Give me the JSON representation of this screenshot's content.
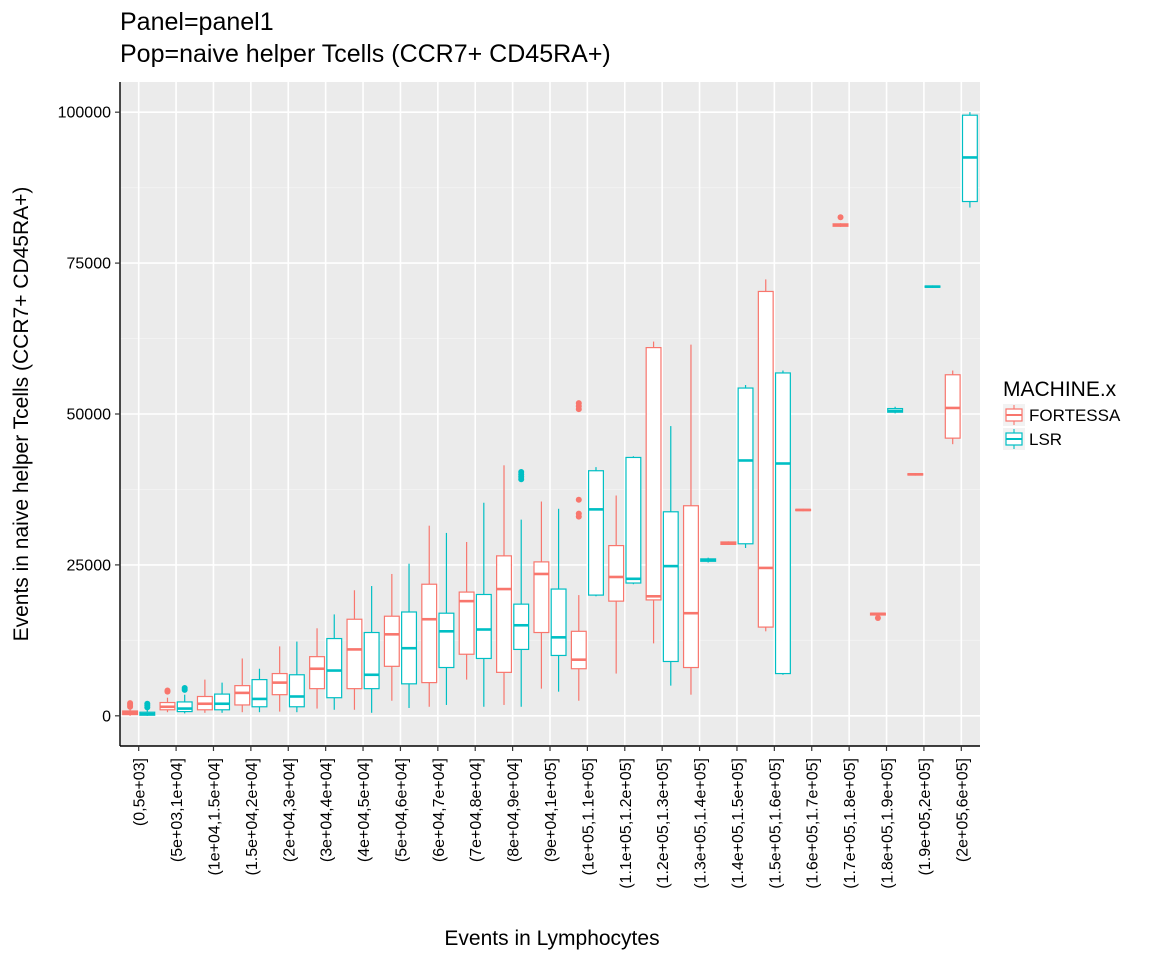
{
  "chart_data": {
    "type": "boxplot",
    "title": "Panel=panel1",
    "subtitle": "Pop=naive helper Tcells (CCR7+ CD45RA+)",
    "xlabel": "Events in Lymphocytes",
    "ylabel": "Events in naive helper Tcells (CCR7+ CD45RA+)",
    "ylim": [
      -5000,
      105000
    ],
    "yticks": [
      0,
      25000,
      50000,
      75000,
      100000
    ],
    "ytick_labels": [
      "0",
      "25000",
      "50000",
      "75000",
      "100000"
    ],
    "grid": true,
    "legend": {
      "title": "MACHINE.x",
      "position": "right",
      "entries": [
        {
          "label": "FORTESSA",
          "color": "#F8766D"
        },
        {
          "label": "LSR",
          "color": "#00BFC4"
        }
      ]
    },
    "categories": [
      "(0,5e+03]",
      "(5e+03,1e+04]",
      "(1e+04,1.5e+04]",
      "(1.5e+04,2e+04]",
      "(2e+04,3e+04]",
      "(3e+04,4e+04]",
      "(4e+04,5e+04]",
      "(5e+04,6e+04]",
      "(6e+04,7e+04]",
      "(7e+04,8e+04]",
      "(8e+04,9e+04]",
      "(9e+04,1e+05]",
      "(1e+05,1.1e+05]",
      "(1.1e+05,1.2e+05]",
      "(1.2e+05,1.3e+05]",
      "(1.3e+05,1.4e+05]",
      "(1.4e+05,1.5e+05]",
      "(1.5e+05,1.6e+05]",
      "(1.6e+05,1.7e+05]",
      "(1.7e+05,1.8e+05]",
      "(1.8e+05,1.9e+05]",
      "(1.9e+05,2e+05]",
      "(2e+05,6e+05]"
    ],
    "series": [
      {
        "name": "FORTESSA",
        "color": "#F8766D",
        "boxes": [
          {
            "cat": 0,
            "min": 0,
            "q1": 200,
            "median": 500,
            "q3": 800,
            "max": 1200,
            "outliers": [
              1500,
              1800,
              2100
            ]
          },
          {
            "cat": 1,
            "min": 600,
            "q1": 1000,
            "median": 1500,
            "q3": 2200,
            "max": 3000,
            "outliers": [
              4000,
              4200
            ]
          },
          {
            "cat": 2,
            "min": 500,
            "q1": 1000,
            "median": 2000,
            "q3": 3200,
            "max": 6000,
            "outliers": []
          },
          {
            "cat": 3,
            "min": 600,
            "q1": 1800,
            "median": 3800,
            "q3": 5000,
            "max": 9500,
            "outliers": []
          },
          {
            "cat": 4,
            "min": 700,
            "q1": 3500,
            "median": 5500,
            "q3": 7000,
            "max": 11500,
            "outliers": []
          },
          {
            "cat": 5,
            "min": 1200,
            "q1": 4500,
            "median": 7800,
            "q3": 9800,
            "max": 14500,
            "outliers": []
          },
          {
            "cat": 6,
            "min": 1000,
            "q1": 4500,
            "median": 11000,
            "q3": 16000,
            "max": 20800,
            "outliers": []
          },
          {
            "cat": 7,
            "min": 2500,
            "q1": 8200,
            "median": 13500,
            "q3": 16500,
            "max": 23500,
            "outliers": []
          },
          {
            "cat": 8,
            "min": 1500,
            "q1": 5500,
            "median": 16000,
            "q3": 21800,
            "max": 31500,
            "outliers": []
          },
          {
            "cat": 9,
            "min": 6000,
            "q1": 10200,
            "median": 19000,
            "q3": 20500,
            "max": 28800,
            "outliers": []
          },
          {
            "cat": 10,
            "min": 1800,
            "q1": 7200,
            "median": 21000,
            "q3": 26500,
            "max": 41500,
            "outliers": []
          },
          {
            "cat": 11,
            "min": 4500,
            "q1": 13800,
            "median": 23500,
            "q3": 25500,
            "max": 35500,
            "outliers": []
          },
          {
            "cat": 12,
            "min": 2500,
            "q1": 7800,
            "median": 9300,
            "q3": 14000,
            "max": 20000,
            "outliers": [
              33000,
              33500,
              35800,
              50800,
              51300,
              51800
            ]
          },
          {
            "cat": 13,
            "min": 7000,
            "q1": 19000,
            "median": 23000,
            "q3": 28200,
            "max": 36500,
            "outliers": []
          },
          {
            "cat": 14,
            "min": 12000,
            "q1": 19200,
            "median": 19800,
            "q3": 61000,
            "max": 62000,
            "outliers": []
          },
          {
            "cat": 15,
            "min": 3500,
            "q1": 8000,
            "median": 17000,
            "q3": 34800,
            "max": 61500,
            "outliers": []
          },
          {
            "cat": 16,
            "min": 28300,
            "q1": 28400,
            "median": 28600,
            "q3": 28800,
            "max": 28900,
            "outliers": []
          },
          {
            "cat": 17,
            "min": 14000,
            "q1": 14700,
            "median": 24500,
            "q3": 70300,
            "max": 72300,
            "outliers": []
          },
          {
            "cat": 18,
            "min": 33900,
            "q1": 34000,
            "median": 34100,
            "q3": 34200,
            "max": 34300,
            "outliers": []
          },
          {
            "cat": 19,
            "min": 81000,
            "q1": 81100,
            "median": 81300,
            "q3": 81500,
            "max": 81600,
            "outliers": [
              82600
            ]
          },
          {
            "cat": 20,
            "min": 16500,
            "q1": 16700,
            "median": 16900,
            "q3": 17000,
            "max": 17100,
            "outliers": [
              16200
            ]
          },
          {
            "cat": 21,
            "min": 39800,
            "q1": 39900,
            "median": 40000,
            "q3": 40100,
            "max": 40200,
            "outliers": []
          },
          {
            "cat": 22,
            "min": 45000,
            "q1": 46000,
            "median": 51000,
            "q3": 56500,
            "max": 57200,
            "outliers": []
          }
        ]
      },
      {
        "name": "LSR",
        "color": "#00BFC4",
        "boxes": [
          {
            "cat": 0,
            "min": 0,
            "q1": 100,
            "median": 300,
            "q3": 600,
            "max": 1000,
            "outliers": [
              1400,
              1700,
              2000
            ]
          },
          {
            "cat": 1,
            "min": 400,
            "q1": 700,
            "median": 1200,
            "q3": 2300,
            "max": 3500,
            "outliers": [
              4300,
              4600
            ]
          },
          {
            "cat": 2,
            "min": 500,
            "q1": 1000,
            "median": 2000,
            "q3": 3600,
            "max": 5500,
            "outliers": []
          },
          {
            "cat": 3,
            "min": 600,
            "q1": 1500,
            "median": 2800,
            "q3": 6000,
            "max": 7800,
            "outliers": []
          },
          {
            "cat": 4,
            "min": 600,
            "q1": 1500,
            "median": 3200,
            "q3": 6800,
            "max": 12300,
            "outliers": []
          },
          {
            "cat": 5,
            "min": 1000,
            "q1": 3000,
            "median": 7500,
            "q3": 12800,
            "max": 16800,
            "outliers": []
          },
          {
            "cat": 6,
            "min": 500,
            "q1": 4500,
            "median": 6800,
            "q3": 13800,
            "max": 21500,
            "outliers": []
          },
          {
            "cat": 7,
            "min": 1300,
            "q1": 5300,
            "median": 11200,
            "q3": 17200,
            "max": 25200,
            "outliers": []
          },
          {
            "cat": 8,
            "min": 1800,
            "q1": 8000,
            "median": 14000,
            "q3": 17000,
            "max": 30300,
            "outliers": []
          },
          {
            "cat": 9,
            "min": 1500,
            "q1": 9500,
            "median": 14300,
            "q3": 20100,
            "max": 35300,
            "outliers": []
          },
          {
            "cat": 10,
            "min": 1500,
            "q1": 11000,
            "median": 15000,
            "q3": 18500,
            "max": 32500,
            "outliers": [
              39200,
              39600,
              40000,
              40400
            ]
          },
          {
            "cat": 11,
            "min": 4000,
            "q1": 10000,
            "median": 13000,
            "q3": 21000,
            "max": 34300,
            "outliers": []
          },
          {
            "cat": 12,
            "min": 19800,
            "q1": 20000,
            "median": 34200,
            "q3": 40600,
            "max": 41200,
            "outliers": []
          },
          {
            "cat": 13,
            "min": 21800,
            "q1": 22000,
            "median": 22700,
            "q3": 42800,
            "max": 43000,
            "outliers": []
          },
          {
            "cat": 14,
            "min": 5000,
            "q1": 9000,
            "median": 24800,
            "q3": 33800,
            "max": 48000,
            "outliers": []
          },
          {
            "cat": 15,
            "min": 25400,
            "q1": 25600,
            "median": 25800,
            "q3": 26000,
            "max": 26200,
            "outliers": []
          },
          {
            "cat": 16,
            "min": 27800,
            "q1": 28500,
            "median": 42300,
            "q3": 54300,
            "max": 54800,
            "outliers": []
          },
          {
            "cat": 17,
            "min": 6800,
            "q1": 7000,
            "median": 41800,
            "q3": 56800,
            "max": 57200,
            "outliers": []
          },
          {
            "cat": 20,
            "min": 50100,
            "q1": 50300,
            "median": 50500,
            "q3": 50900,
            "max": 51200,
            "outliers": []
          },
          {
            "cat": 21,
            "min": 70900,
            "q1": 71000,
            "median": 71100,
            "q3": 71200,
            "max": 71300,
            "outliers": []
          },
          {
            "cat": 22,
            "min": 84200,
            "q1": 85200,
            "median": 92500,
            "q3": 99500,
            "max": 100000,
            "outliers": []
          }
        ]
      }
    ]
  }
}
